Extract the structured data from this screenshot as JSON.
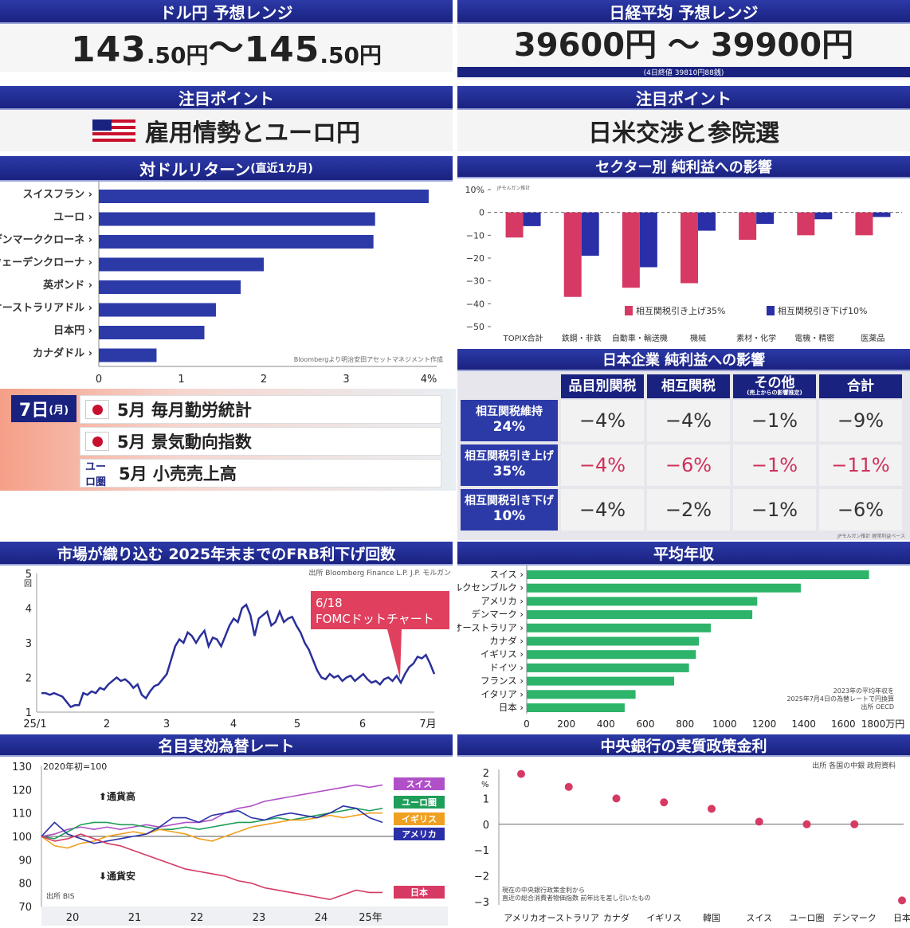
{
  "usdjpy": {
    "header": "ドル円 予想レンジ",
    "low_int": "143",
    "low_dec": ".50円",
    "sep": " ～ ",
    "high_int": "145",
    "high_dec": ".50円"
  },
  "nikkei": {
    "header": "日経平均 予想レンジ",
    "range": "39600円 ～ 39900円",
    "note": "(4日終値 39810円88銭)"
  },
  "focus_left": {
    "header": "注目ポイント",
    "text": "雇用情勢とユーロ円"
  },
  "focus_right": {
    "header": "注目ポイント",
    "text": "日米交渉と参院選"
  },
  "returns_chart": {
    "header": "対ドルリターン",
    "header_sub": "(直近1カ月)",
    "source": "Bloombergより明治安田アセットマネジメント作成"
  },
  "sector_chart": {
    "header": "セクター別 純利益への影響",
    "source": "JPモルガン推計",
    "legend": [
      "相互関税引き上げ35%",
      "相互関税引き下げ10%"
    ],
    "colors": [
      "#d63a64",
      "#2a2fa8"
    ]
  },
  "calendar": {
    "date": "7日",
    "weekday": "(月)",
    "events": [
      {
        "flag": "jp",
        "text": "5月 毎月勤労統計"
      },
      {
        "flag": "jp",
        "text": "5月 景気動向指数"
      },
      {
        "flag": "eu",
        "mark": "ユーロ圏",
        "text": "5月 小売売上高"
      }
    ]
  },
  "impact_table": {
    "header": "日本企業 純利益への影響",
    "columns": [
      "品目別関税",
      "相互関税",
      "その他",
      "合計"
    ],
    "col_sub": [
      "",
      "",
      "(売上からの影響推定)",
      ""
    ],
    "rows": [
      {
        "label": "相互関税維持",
        "label2": "24%",
        "values": [
          "−4%",
          "−4%",
          "−1%",
          "−9%"
        ],
        "red": false
      },
      {
        "label": "相互関税引き上げ",
        "label2": "35%",
        "values": [
          "−4%",
          "−6%",
          "−1%",
          "−11%"
        ],
        "red": true
      },
      {
        "label": "相互関税引き下げ",
        "label2": "10%",
        "values": [
          "−4%",
          "−2%",
          "−1%",
          "−6%"
        ],
        "red": false
      }
    ],
    "source": "JPモルガン推計 経常利益ベース"
  },
  "frb_chart": {
    "header": "市場が織り込む 2025年末までのFRB利下げ回数",
    "source": "出所 Bloomberg Finance L.P. J.P. モルガン",
    "callout_line1": "6/18",
    "callout_line2": "FOMCドットチャート",
    "yunit": "回"
  },
  "income_chart": {
    "header": "平均年収",
    "note1": "2023年の平均年収を",
    "note2": "2025年7月4日の為替レートで円換算",
    "source": "出所 OECD",
    "unit": "万円"
  },
  "neer_chart": {
    "header": "名目実効為替レート",
    "base_note": "2020年初=100",
    "up": "通貨高",
    "down": "通貨安",
    "source": "出所 BIS"
  },
  "real_rate_chart": {
    "header": "中央銀行の実質政策金利",
    "source": "出所 各国の中銀 政府資料",
    "note1": "現在の中央銀行政策金利から",
    "note2": "直近の総合消費者物価指数 前年比を差し引いたもの",
    "yunit": "%"
  },
  "chart_data": [
    {
      "type": "bar",
      "title": "対ドルリターン(直近1カ月)",
      "categories": [
        "スイスフラン",
        "ユーロ",
        "デンマーククローネ",
        "スウェーデンクローナ",
        "英ポンド",
        "オーストラリアドル",
        "日本円",
        "カナダドル"
      ],
      "values": [
        4.0,
        3.35,
        3.33,
        2.0,
        1.72,
        1.42,
        1.28,
        0.7
      ],
      "xlim": [
        0,
        4
      ],
      "xticks": [
        "0",
        "1",
        "2",
        "3",
        "4%"
      ],
      "color": "#2c3aa8"
    },
    {
      "type": "bar",
      "title": "セクター別 純利益への影響",
      "categories": [
        "TOPIX合計",
        "鉄鋼・非鉄",
        "自動車・輸送機",
        "機械",
        "素材・化学",
        "電機・精密",
        "医薬品"
      ],
      "series": [
        {
          "name": "相互関税引き上げ35%",
          "values": [
            -11,
            -37,
            -33,
            -31,
            -12,
            -10,
            -10
          ]
        },
        {
          "name": "相互関税引き下げ10%",
          "values": [
            -6,
            -19,
            -24,
            -8,
            -5,
            -3,
            -2
          ]
        }
      ],
      "ylim": [
        -50,
        10
      ],
      "yticks": [
        "10%",
        "0",
        "−10",
        "−20",
        "−30",
        "−40",
        "−50"
      ]
    },
    {
      "type": "line",
      "title": "市場が織り込む 2025年末までのFRB利下げ回数",
      "xticks": [
        "25/1",
        "2",
        "3",
        "4",
        "5",
        "6",
        "7月"
      ],
      "ylim": [
        1,
        5
      ],
      "yticks": [
        "5",
        "4",
        "3",
        "2",
        "1"
      ],
      "values": [
        1.55,
        1.55,
        1.5,
        1.55,
        1.5,
        1.45,
        1.3,
        1.15,
        1.2,
        1.2,
        1.55,
        1.5,
        1.6,
        1.55,
        1.7,
        1.65,
        1.8,
        1.9,
        2.0,
        1.9,
        1.95,
        1.85,
        1.7,
        1.8,
        1.5,
        1.4,
        1.6,
        1.75,
        1.8,
        1.95,
        2.1,
        2.5,
        2.9,
        3.1,
        3.0,
        3.3,
        3.2,
        3.0,
        3.2,
        3.35,
        2.9,
        3.15,
        3.1,
        2.9,
        3.2,
        3.5,
        3.7,
        3.6,
        4.0,
        4.1,
        3.8,
        3.2,
        3.7,
        3.8,
        3.9,
        3.5,
        3.6,
        3.9,
        3.6,
        3.7,
        3.75,
        3.5,
        3.3,
        3.0,
        2.8,
        2.5,
        2.2,
        2.0,
        1.95,
        2.1,
        2.0,
        2.05,
        1.9,
        2.0,
        2.05,
        1.9,
        2.0,
        2.1,
        1.95,
        1.85,
        1.9,
        1.8,
        1.95,
        2.0,
        1.9,
        2.05,
        1.85,
        2.1,
        2.3,
        2.4,
        2.6,
        2.55,
        2.65,
        2.4,
        2.1
      ],
      "color": "#2a2f9a"
    },
    {
      "type": "bar",
      "title": "平均年収",
      "categories": [
        "スイス",
        "ルクセンブルク",
        "アメリカ",
        "デンマーク",
        "オーストラリア",
        "カナダ",
        "イギリス",
        "ドイツ",
        "フランス",
        "イタリア",
        "日本"
      ],
      "values": [
        1730,
        1385,
        1165,
        1140,
        930,
        870,
        855,
        820,
        745,
        550,
        495
      ],
      "xlim": [
        0,
        1800
      ],
      "xticks": [
        "0",
        "200",
        "400",
        "600",
        "800",
        "1000",
        "1200",
        "1400",
        "1600",
        "1800万円"
      ],
      "color": "#2db36a"
    },
    {
      "type": "line",
      "title": "名目実効為替レート",
      "xticks": [
        "20",
        "21",
        "22",
        "23",
        "24",
        "25年"
      ],
      "ylim": [
        70,
        130
      ],
      "yticks": [
        "130",
        "120",
        "110",
        "100",
        "90",
        "80",
        "70"
      ],
      "series": [
        {
          "name": "スイス",
          "color": "#b050c8",
          "values": [
            100,
            101,
            103,
            104,
            103,
            104,
            103,
            104,
            105,
            104,
            105,
            106,
            106,
            107,
            110,
            112,
            113,
            115,
            116,
            117,
            118,
            119,
            120,
            121,
            122,
            121,
            122
          ]
        },
        {
          "name": "ユーロ圏",
          "color": "#1f9e5a",
          "values": [
            100,
            99,
            102,
            105,
            106,
            106,
            105,
            105,
            104,
            103,
            103,
            104,
            103,
            104,
            105,
            106,
            106,
            107,
            108,
            107,
            108,
            109,
            110,
            111,
            112,
            111,
            112
          ]
        },
        {
          "name": "イギリス",
          "color": "#f0a020",
          "values": [
            100,
            96,
            95,
            97,
            98,
            100,
            101,
            102,
            101,
            103,
            102,
            101,
            99,
            98,
            100,
            102,
            104,
            105,
            106,
            107,
            107,
            108,
            109,
            108,
            109,
            110,
            110
          ]
        },
        {
          "name": "アメリカ",
          "color": "#2a2fa8",
          "values": [
            100,
            106,
            101,
            99,
            97,
            98,
            99,
            100,
            101,
            104,
            108,
            108,
            106,
            109,
            110,
            111,
            108,
            107,
            109,
            110,
            109,
            108,
            110,
            113,
            112,
            108,
            106
          ]
        },
        {
          "name": "日本",
          "color": "#d63a64",
          "values": [
            100,
            98,
            99,
            101,
            99,
            97,
            96,
            94,
            92,
            90,
            88,
            86,
            85,
            84,
            83,
            81,
            80,
            78,
            77,
            76,
            75,
            74,
            73,
            75,
            77,
            76,
            76
          ]
        }
      ]
    },
    {
      "type": "scatter",
      "title": "中央銀行の実質政策金利",
      "categories": [
        "アメリカ",
        "オーストラリア",
        "カナダ",
        "イギリス",
        "韓国",
        "スイス",
        "ユーロ圏",
        "デンマーク",
        "日本"
      ],
      "values": [
        1.95,
        1.45,
        1.0,
        0.85,
        0.6,
        0.1,
        0.0,
        0.0,
        -2.95
      ],
      "ylim": [
        -3,
        2
      ],
      "yticks": [
        "2",
        "1",
        "0",
        "−1",
        "−2",
        "−3"
      ],
      "color": "#d63a64"
    }
  ]
}
